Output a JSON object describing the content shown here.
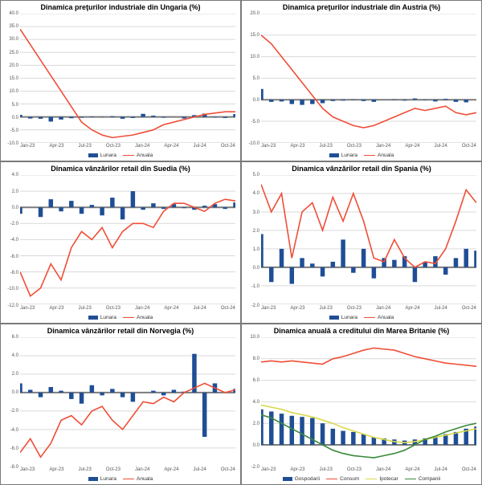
{
  "global": {
    "categories": [
      "Jan-23",
      "",
      "",
      "Apr-23",
      "",
      "",
      "Jul-23",
      "",
      "",
      "Oct-23",
      "",
      "",
      "Jan-24",
      "",
      "",
      "Apr-24",
      "",
      "",
      "Jul-24",
      "",
      "",
      "Oct-24"
    ],
    "xtick_labels": [
      "Jan-23",
      "Apr-23",
      "Jul-23",
      "Oct-23",
      "Jan-24",
      "Apr-24",
      "Jul-24",
      "Oct-24"
    ],
    "colors": {
      "lunara": "#1f4e96",
      "anuala": "#f04e37",
      "grid": "#d9d9d9",
      "zero": "#7b7b7b",
      "ipotecar": "#d9d94a",
      "companii": "#3b8a3b"
    },
    "fonts": {
      "title_size": 9,
      "tick_size": 6,
      "legend_size": 6.5
    }
  },
  "charts": [
    {
      "id": "hungary",
      "title": "Dinamica preţurilor industriale din Ungaria (%)",
      "ylim": [
        -10,
        40
      ],
      "ytick_step": 5,
      "legend": [
        [
          "Lunara",
          "bar",
          "lunara"
        ],
        [
          "Anuala",
          "line",
          "anuala"
        ]
      ],
      "series": [
        {
          "name": "Lunara",
          "type": "bar",
          "color": "lunara",
          "values": [
            0.8,
            -0.6,
            -0.7,
            -1.8,
            -1.0,
            -0.5,
            -0.3,
            0.2,
            0.1,
            0.3,
            -0.7,
            -0.4,
            1.2,
            0.5,
            -0.3,
            0.0,
            -0.6,
            0.7,
            1.3,
            -0.2,
            -0.4,
            1.1
          ]
        },
        {
          "name": "Anuala",
          "type": "line",
          "color": "anuala",
          "values": [
            34.0,
            28.0,
            22.0,
            16.0,
            10.0,
            4.0,
            -2.0,
            -5.0,
            -7.0,
            -8.0,
            -7.5,
            -7.0,
            -6.0,
            -5.0,
            -3.0,
            -2.0,
            -1.0,
            0.0,
            1.0,
            1.5,
            2.0,
            2.0
          ]
        }
      ]
    },
    {
      "id": "austria",
      "title": "Dinamica preţurilor industriale din Austria (%)",
      "ylim": [
        -10,
        20
      ],
      "ytick_step": 5,
      "legend": [
        [
          "Lunara",
          "bar",
          "lunara"
        ],
        [
          "Anuala",
          "line",
          "anuala"
        ]
      ],
      "series": [
        {
          "name": "Lunara",
          "type": "bar",
          "color": "lunara",
          "values": [
            2.5,
            -0.5,
            -0.4,
            -1.0,
            -1.2,
            -1.0,
            -0.8,
            -0.3,
            -0.2,
            0.1,
            -0.3,
            -0.5,
            0.0,
            0.1,
            -0.2,
            0.3,
            -0.1,
            -0.4,
            0.2,
            -0.5,
            -0.6,
            0.0
          ]
        },
        {
          "name": "Anuala",
          "type": "line",
          "color": "anuala",
          "values": [
            15.0,
            13.0,
            10.0,
            7.0,
            4.0,
            1.0,
            -2.0,
            -4.0,
            -5.0,
            -6.0,
            -6.5,
            -6.0,
            -5.0,
            -4.0,
            -3.0,
            -2.0,
            -2.5,
            -2.0,
            -1.5,
            -3.0,
            -3.5,
            -3.0
          ]
        }
      ]
    },
    {
      "id": "sweden",
      "title": "Dinamica vânzărilor retail din Suedia (%)",
      "ylim": [
        -12,
        4
      ],
      "ytick_step": 2,
      "legend": [
        [
          "Lunara",
          "bar",
          "lunara"
        ],
        [
          "Anuala",
          "line",
          "anuala"
        ]
      ],
      "series": [
        {
          "name": "Lunara",
          "type": "bar",
          "color": "lunara",
          "values": [
            -0.8,
            0.0,
            -1.2,
            1.0,
            -0.5,
            0.8,
            -0.8,
            0.3,
            -1.0,
            1.2,
            -1.5,
            2.0,
            -0.3,
            0.5,
            -0.2,
            0.4,
            -0.1,
            -0.3,
            0.2,
            0.4,
            -0.2,
            0.6
          ]
        },
        {
          "name": "Anuala",
          "type": "line",
          "color": "anuala",
          "values": [
            -8.0,
            -11.0,
            -10.0,
            -7.0,
            -9.0,
            -5.0,
            -3.0,
            -4.0,
            -2.5,
            -5.0,
            -3.0,
            -2.0,
            -2.0,
            -2.5,
            -0.5,
            0.5,
            0.5,
            0.0,
            -0.5,
            0.5,
            1.0,
            0.8
          ]
        }
      ]
    },
    {
      "id": "spain",
      "title": "Dinamica vânzărilor retail din Spania (%)",
      "ylim": [
        -2,
        5
      ],
      "ytick_step": 1,
      "legend": [
        [
          "Lunara",
          "bar",
          "lunara"
        ],
        [
          "Anuala",
          "line",
          "anuala"
        ]
      ],
      "series": [
        {
          "name": "Lunara",
          "type": "bar",
          "color": "lunara",
          "values": [
            1.8,
            -0.8,
            1.0,
            -0.9,
            0.5,
            0.2,
            -0.5,
            0.3,
            1.5,
            -0.3,
            1.0,
            -0.6,
            0.5,
            0.4,
            0.6,
            -0.8,
            0.3,
            0.6,
            -0.4,
            0.5,
            1.0,
            0.9
          ]
        },
        {
          "name": "Anuala",
          "type": "line",
          "color": "anuala",
          "values": [
            4.5,
            3.0,
            4.0,
            0.5,
            3.0,
            3.5,
            2.0,
            3.8,
            2.5,
            4.0,
            2.5,
            0.5,
            0.3,
            1.5,
            0.5,
            0.0,
            0.3,
            0.2,
            1.0,
            2.5,
            4.2,
            3.5
          ]
        }
      ]
    },
    {
      "id": "norway",
      "title": "Dinamica vânzărilor retail din Norvegia (%)",
      "ylim": [
        -8,
        6
      ],
      "ytick_step": 2,
      "legend": [
        [
          "Lunara",
          "bar",
          "lunara"
        ],
        [
          "Anuala",
          "line",
          "anuala"
        ]
      ],
      "series": [
        {
          "name": "Lunara",
          "type": "bar",
          "color": "lunara",
          "values": [
            1.0,
            0.3,
            -0.5,
            0.6,
            0.2,
            -0.7,
            -1.2,
            0.8,
            -0.3,
            0.4,
            -0.5,
            -1.0,
            0.0,
            0.2,
            -0.3,
            0.3,
            0.1,
            4.2,
            -4.8,
            1.0,
            0.0,
            0.4
          ]
        },
        {
          "name": "Anuala",
          "type": "line",
          "color": "anuala",
          "values": [
            -6.5,
            -5.0,
            -7.0,
            -5.5,
            -3.0,
            -2.5,
            -3.5,
            -2.0,
            -1.5,
            -3.0,
            -4.0,
            -2.5,
            -1.0,
            -1.2,
            -0.5,
            -1.0,
            0.0,
            0.5,
            1.0,
            0.5,
            0.0,
            0.3
          ]
        }
      ]
    },
    {
      "id": "uk",
      "title": "Dinamica anuală a creditului din Marea Britanie (%)",
      "ylim": [
        -2,
        10
      ],
      "ytick_step": 2,
      "legend": [
        [
          "Gospodarii",
          "bar",
          "lunara"
        ],
        [
          "Consum",
          "line",
          "anuala"
        ],
        [
          "Ipotecar",
          "line",
          "ipotecar"
        ],
        [
          "Companii",
          "line",
          "companii"
        ]
      ],
      "series": [
        {
          "name": "Gospodarii",
          "type": "bar",
          "color": "lunara",
          "values": [
            3.3,
            3.1,
            2.9,
            2.7,
            2.6,
            2.5,
            2.0,
            1.5,
            1.3,
            1.2,
            1.0,
            0.7,
            0.6,
            0.5,
            0.4,
            0.5,
            0.6,
            0.8,
            1.0,
            1.2,
            1.5,
            1.7
          ]
        },
        {
          "name": "Consum",
          "type": "line",
          "color": "anuala",
          "values": [
            7.7,
            7.8,
            7.7,
            7.8,
            7.7,
            7.6,
            7.5,
            8.0,
            8.2,
            8.5,
            8.8,
            9.0,
            8.9,
            8.8,
            8.5,
            8.2,
            8.0,
            7.8,
            7.6,
            7.5,
            7.4,
            7.3
          ]
        },
        {
          "name": "Ipotecar",
          "type": "line",
          "color": "ipotecar",
          "values": [
            3.7,
            3.5,
            3.3,
            3.0,
            2.8,
            2.6,
            2.3,
            2.0,
            1.6,
            1.3,
            1.0,
            0.7,
            0.5,
            0.3,
            0.2,
            0.3,
            0.5,
            0.7,
            0.9,
            1.1,
            1.3,
            1.5
          ]
        },
        {
          "name": "Companii",
          "type": "line",
          "color": "companii",
          "values": [
            2.8,
            2.5,
            2.0,
            1.5,
            1.0,
            0.5,
            0.0,
            -0.5,
            -0.8,
            -1.0,
            -1.1,
            -1.2,
            -1.0,
            -0.8,
            -0.5,
            0.0,
            0.5,
            0.8,
            1.2,
            1.5,
            1.8,
            2.0
          ]
        }
      ]
    }
  ]
}
